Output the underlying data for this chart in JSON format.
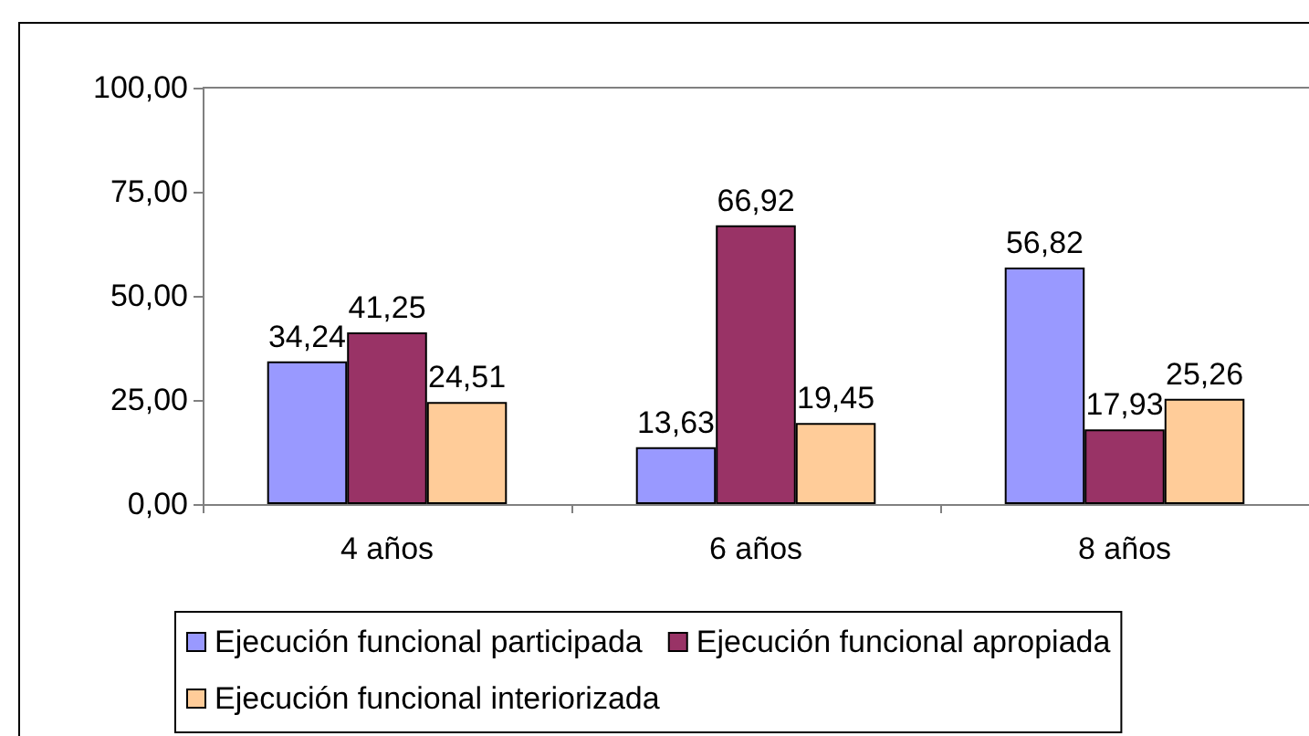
{
  "chart_data": {
    "type": "bar",
    "categories": [
      "4 años",
      "6 años",
      "8 años"
    ],
    "series": [
      {
        "name": "Ejecución funcional participada",
        "color": "#9999ff",
        "values": [
          34.24,
          13.63,
          56.82
        ],
        "value_labels": [
          "34,24",
          "13,63",
          "56,82"
        ]
      },
      {
        "name": "Ejecución funcional apropiada",
        "color": "#993366",
        "values": [
          41.25,
          66.92,
          17.93
        ],
        "value_labels": [
          "41,25",
          "66,92",
          "17,93"
        ]
      },
      {
        "name": "Ejecución funcional interiorizada",
        "color": "#ffcc99",
        "values": [
          24.51,
          19.45,
          25.26
        ],
        "value_labels": [
          "24,51",
          "19,45",
          "25,26"
        ]
      }
    ],
    "ylim": [
      0,
      100
    ],
    "yticks": [
      {
        "value": 0,
        "label": "0,00"
      },
      {
        "value": 25,
        "label": "25,00"
      },
      {
        "value": 50,
        "label": "50,00"
      },
      {
        "value": 75,
        "label": "75,00"
      },
      {
        "value": 100,
        "label": "100,00"
      }
    ],
    "grid": false,
    "legend": "bottom"
  }
}
